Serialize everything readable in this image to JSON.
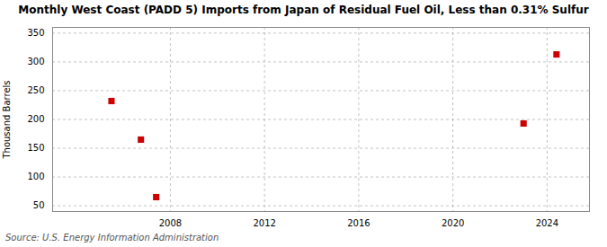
{
  "chart_data": {
    "type": "scatter",
    "title": "Monthly West Coast (PADD 5) Imports from Japan of Residual Fuel Oil, Less than 0.31% Sulfur",
    "ylabel": "Thousand Barrels",
    "annotations": [
      "Source: U.S. Energy Information Administration"
    ],
    "x": [
      2005.5,
      2006.75,
      2007.4,
      2023.0,
      2024.4
    ],
    "values": [
      232,
      165,
      65,
      193,
      313
    ],
    "color": "#cc0000",
    "marker": "square",
    "xlim": [
      2003.0,
      2025.8
    ],
    "ylim": [
      40,
      360
    ],
    "xticks": [
      2008,
      2012,
      2016,
      2020,
      2024
    ],
    "yticks": [
      50,
      100,
      150,
      200,
      250,
      300,
      350
    ],
    "grid": true
  }
}
